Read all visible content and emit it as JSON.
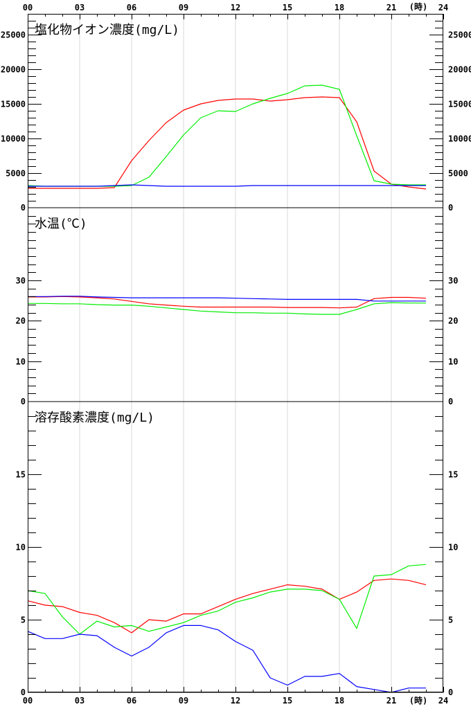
{
  "chart_data": {
    "type": "line",
    "x_ticks": [
      "00",
      "03",
      "06",
      "09",
      "12",
      "15",
      "18",
      "21",
      "24"
    ],
    "x_unit": "(時)",
    "x_range": [
      0,
      24
    ],
    "series_colors": [
      "#ff0000",
      "#00ee00",
      "#0000ff"
    ],
    "panels": [
      {
        "id": "chloride",
        "title": "塩化物イオン濃度(mg/L)",
        "ylim": [
          0,
          28000
        ],
        "y_ticks": [
          0,
          5000,
          10000,
          15000,
          20000,
          25000
        ],
        "y_labels": [
          "0",
          "5000",
          "10000",
          "15000",
          "20000",
          "25000"
        ],
        "minor_step": 1000,
        "series": [
          {
            "color": "#ff0000",
            "x": [
              0,
              1,
              2,
              3,
              4,
              5,
              6,
              7,
              8,
              9,
              10,
              11,
              12,
              13,
              14,
              15,
              16,
              17,
              18,
              19,
              20,
              21,
              22,
              23
            ],
            "values": [
              2800,
              2800,
              2800,
              2800,
              2800,
              2900,
              6800,
              9700,
              12300,
              14100,
              15000,
              15500,
              15700,
              15700,
              15400,
              15600,
              15900,
              16000,
              15900,
              12400,
              5300,
              3400,
              3000,
              2700
            ]
          },
          {
            "color": "#00ee00",
            "x": [
              0,
              1,
              2,
              3,
              4,
              5,
              6,
              7,
              8,
              9,
              10,
              11,
              12,
              13,
              14,
              15,
              16,
              17,
              18,
              19,
              20,
              21,
              22,
              23
            ],
            "values": [
              3200,
              3100,
              3100,
              3100,
              3100,
              3100,
              3200,
              4400,
              7400,
              10500,
              13000,
              14000,
              13900,
              15000,
              15800,
              16500,
              17600,
              17700,
              17100,
              10400,
              3900,
              3400,
              3300,
              3300
            ]
          },
          {
            "color": "#0000ff",
            "x": [
              0,
              1,
              2,
              3,
              4,
              5,
              6,
              7,
              8,
              9,
              10,
              11,
              12,
              13,
              14,
              15,
              16,
              17,
              18,
              19,
              20,
              21,
              22,
              23
            ],
            "values": [
              3100,
              3100,
              3100,
              3100,
              3100,
              3200,
              3300,
              3200,
              3100,
              3100,
              3100,
              3100,
              3100,
              3200,
              3200,
              3200,
              3200,
              3200,
              3200,
              3200,
              3200,
              3200,
              3200,
              3200
            ]
          }
        ]
      },
      {
        "id": "water-temp",
        "title": "水温(℃)",
        "ylim": [
          0,
          48
        ],
        "y_ticks": [
          0,
          10,
          20,
          30
        ],
        "y_labels": [
          "0",
          "10",
          "20",
          "30"
        ],
        "minor_step": 2,
        "series": [
          {
            "color": "#ff0000",
            "x": [
              0,
              1,
              2,
              3,
              4,
              5,
              6,
              7,
              8,
              9,
              10,
              11,
              12,
              13,
              14,
              15,
              16,
              17,
              18,
              19,
              20,
              21,
              22,
              23
            ],
            "values": [
              25.9,
              25.9,
              26.0,
              25.9,
              25.7,
              25.4,
              24.8,
              24.2,
              23.9,
              23.6,
              23.4,
              23.4,
              23.4,
              23.4,
              23.4,
              23.3,
              23.3,
              23.3,
              23.2,
              23.4,
              25.5,
              25.8,
              25.8,
              25.6
            ]
          },
          {
            "color": "#00ee00",
            "x": [
              0,
              1,
              2,
              3,
              4,
              5,
              6,
              7,
              8,
              9,
              10,
              11,
              12,
              13,
              14,
              15,
              16,
              17,
              18,
              19,
              20,
              21,
              22,
              23
            ],
            "values": [
              24.3,
              24.3,
              24.2,
              24.2,
              24.0,
              23.9,
              23.9,
              23.6,
              23.2,
              22.8,
              22.4,
              22.2,
              22.0,
              22.0,
              21.9,
              21.9,
              21.7,
              21.6,
              21.6,
              22.8,
              24.2,
              24.5,
              24.4,
              24.4
            ]
          },
          {
            "color": "#0000ff",
            "x": [
              0,
              1,
              2,
              3,
              4,
              5,
              6,
              7,
              8,
              9,
              10,
              11,
              12,
              13,
              14,
              15,
              16,
              17,
              18,
              19,
              20,
              21,
              22,
              23
            ],
            "values": [
              26.0,
              26.0,
              26.1,
              26.1,
              25.9,
              25.8,
              25.7,
              25.7,
              25.7,
              25.7,
              25.7,
              25.7,
              25.6,
              25.5,
              25.4,
              25.3,
              25.3,
              25.3,
              25.3,
              25.3,
              24.9,
              24.9,
              24.9,
              24.9
            ]
          }
        ]
      },
      {
        "id": "dissolved-oxygen",
        "title": "溶存酸素濃度(mg/L)",
        "ylim": [
          0,
          20
        ],
        "y_ticks": [
          0,
          5,
          10,
          15
        ],
        "y_labels": [
          "0",
          "5",
          "10",
          "15"
        ],
        "minor_step": 1,
        "series": [
          {
            "color": "#ff0000",
            "x": [
              0,
              1,
              2,
              3,
              4,
              5,
              6,
              7,
              8,
              9,
              10,
              11,
              12,
              13,
              14,
              15,
              16,
              17,
              18,
              19,
              20,
              21,
              22,
              23
            ],
            "values": [
              6.3,
              6.0,
              5.9,
              5.5,
              5.3,
              4.8,
              4.1,
              5.0,
              4.9,
              5.4,
              5.4,
              5.9,
              6.4,
              6.8,
              7.1,
              7.4,
              7.3,
              7.1,
              6.4,
              6.9,
              7.7,
              7.8,
              7.7,
              7.4
            ]
          },
          {
            "color": "#00ee00",
            "x": [
              0,
              1,
              2,
              3,
              4,
              5,
              6,
              7,
              8,
              9,
              10,
              11,
              12,
              13,
              14,
              15,
              16,
              17,
              18,
              19,
              20,
              21,
              22,
              23
            ],
            "values": [
              7.0,
              6.8,
              5.2,
              4.0,
              4.9,
              4.5,
              4.6,
              4.2,
              4.5,
              4.8,
              5.3,
              5.6,
              6.2,
              6.5,
              6.9,
              7.1,
              7.1,
              7.0,
              6.4,
              4.4,
              8.0,
              8.1,
              8.7,
              8.8
            ]
          },
          {
            "color": "#0000ff",
            "x": [
              0,
              1,
              2,
              3,
              4,
              5,
              6,
              7,
              8,
              9,
              10,
              11,
              12,
              13,
              14,
              15,
              16,
              17,
              18,
              19,
              20,
              21,
              22,
              23
            ],
            "values": [
              4.2,
              3.7,
              3.7,
              4.0,
              3.9,
              3.1,
              2.5,
              3.1,
              4.1,
              4.6,
              4.6,
              4.3,
              3.5,
              2.9,
              1.0,
              0.5,
              1.1,
              1.1,
              1.3,
              0.4,
              0.2,
              0.0,
              0.3,
              0.3
            ]
          }
        ]
      }
    ]
  }
}
